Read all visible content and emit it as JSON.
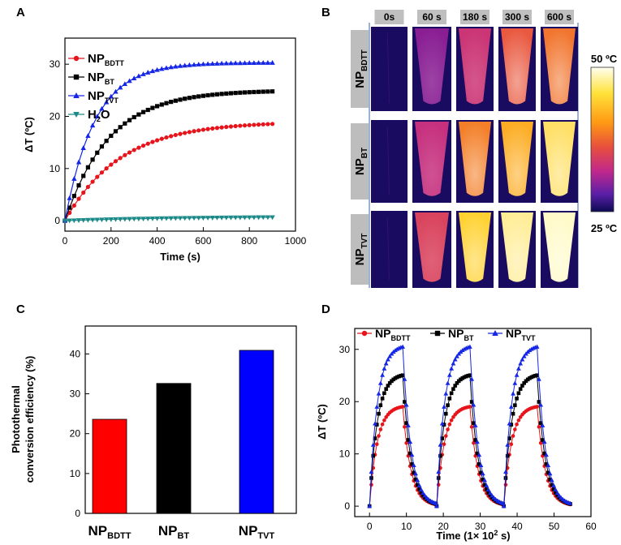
{
  "panels": {
    "a": "A",
    "b": "B",
    "c": "C",
    "d": "D"
  },
  "colors": {
    "bdtt": "#e8141b",
    "bt": "#000000",
    "tvt": "#1526e6",
    "h2o": "#1d8a8a"
  },
  "chart_data": [
    {
      "id": "A",
      "type": "line",
      "xlabel": "Time (s)",
      "ylabel": "ΔT (ºC)",
      "xlim": [
        0,
        1000
      ],
      "ylim": [
        -2,
        35
      ],
      "xticks": [
        0,
        200,
        400,
        600,
        800,
        1000
      ],
      "yticks": [
        0,
        10,
        20,
        30
      ],
      "legend_position": "top-left",
      "series": [
        {
          "key": "bdtt",
          "name": "NP",
          "sub": "BDTT",
          "marker": "circle",
          "plateau": 19.0,
          "tau": 240
        },
        {
          "key": "bt",
          "name": "NP",
          "sub": "BT",
          "marker": "square",
          "plateau": 25.0,
          "tau": 190
        },
        {
          "key": "tvt",
          "name": "NP",
          "sub": "TVT",
          "marker": "triangle-up",
          "plateau": 30.3,
          "tau": 130
        },
        {
          "key": "h2o",
          "name": "H",
          "sub": "2",
          "suffix": "O",
          "marker": "triangle-down",
          "plateau": 0.8,
          "tau": 500
        }
      ]
    },
    {
      "id": "B",
      "type": "heatmap",
      "time_labels": [
        "0s",
        "60 s",
        "180 s",
        "300 s",
        "600 s"
      ],
      "rows": [
        {
          "name": "NP",
          "sub": "BDTT",
          "levels": [
            0.02,
            0.35,
            0.5,
            0.62,
            0.68
          ]
        },
        {
          "name": "NP",
          "sub": "BT",
          "levels": [
            0.08,
            0.48,
            0.7,
            0.8,
            0.92
          ]
        },
        {
          "name": "NP",
          "sub": "TVT",
          "levels": [
            0.05,
            0.55,
            0.88,
            0.96,
            1.0
          ]
        }
      ],
      "colorbar": {
        "max_label": "50 ºC",
        "min_label": "25 ºC",
        "max": 50,
        "min": 25
      }
    },
    {
      "id": "C",
      "type": "bar",
      "categories": [
        {
          "name": "NP",
          "sub": "BDTT"
        },
        {
          "name": "NP",
          "sub": "BT"
        },
        {
          "name": "NP",
          "sub": "TVT"
        }
      ],
      "values": [
        23.6,
        32.6,
        40.9
      ],
      "bar_colors": [
        "#ff0000",
        "#000000",
        "#0000ff"
      ],
      "ylabel_line1": "Photothermal",
      "ylabel_line2": "conversion efficiency (%)",
      "ylim": [
        0,
        47
      ],
      "yticks": [
        0,
        10,
        20,
        30,
        40
      ]
    },
    {
      "id": "D",
      "type": "line",
      "xlabel": "Time (1× 10",
      "xlabel_sup": "2",
      "xlabel_end": " s)",
      "ylabel": "ΔT (ºC)",
      "xlim": [
        -4,
        60
      ],
      "ylim": [
        -2,
        34
      ],
      "xticks": [
        0,
        10,
        20,
        30,
        40,
        50,
        60
      ],
      "yticks": [
        0,
        10,
        20,
        30
      ],
      "cycles": 3,
      "cycle_period": 18.2,
      "heating_duration": 9,
      "cooling_duration": 9,
      "legend_position": "top",
      "series": [
        {
          "key": "bdtt",
          "name": "NP",
          "sub": "BDTT",
          "marker": "circle",
          "plateau": 19.3
        },
        {
          "key": "bt",
          "name": "NP",
          "sub": "BT",
          "marker": "square",
          "plateau": 25.4
        },
        {
          "key": "tvt",
          "name": "NP",
          "sub": "TVT",
          "marker": "triangle-up",
          "plateau": 30.9
        }
      ]
    }
  ]
}
